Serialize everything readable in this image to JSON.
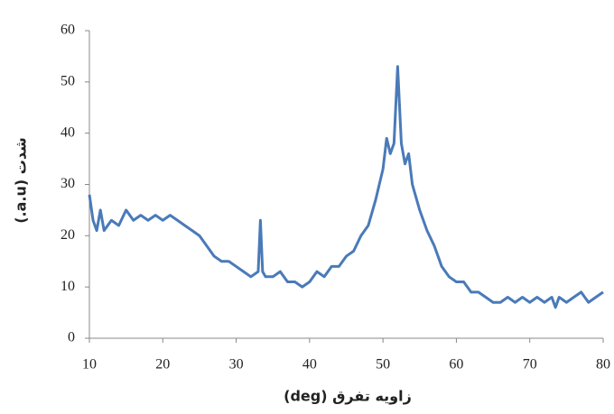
{
  "chart_data": {
    "type": "line",
    "x_label": "زاویه تفرق (deg)",
    "y_label": "شدت (a.u.)",
    "x": [
      10,
      10.5,
      11,
      11.5,
      12,
      13,
      14,
      15,
      16,
      17,
      18,
      19,
      20,
      21,
      22,
      23,
      24,
      25,
      26,
      27,
      28,
      29,
      30,
      31,
      32,
      33,
      33.3,
      33.6,
      34,
      35,
      36,
      37,
      38,
      39,
      40,
      41,
      42,
      43,
      44,
      45,
      46,
      47,
      48,
      49,
      50,
      50.5,
      51,
      51.5,
      52,
      52.5,
      53,
      53.5,
      54,
      55,
      56,
      57,
      58,
      59,
      60,
      61,
      62,
      63,
      64,
      65,
      66,
      67,
      68,
      69,
      70,
      71,
      72,
      73,
      73.5,
      74,
      75,
      76,
      77,
      78,
      79,
      80
    ],
    "series": [
      {
        "color": "#4a7ab8",
        "values": [
          28,
          23,
          21,
          25,
          21,
          23,
          22,
          25,
          23,
          24,
          23,
          24,
          23,
          24,
          23,
          22,
          21,
          20,
          18,
          16,
          15,
          15,
          14,
          13,
          12,
          13,
          23,
          13,
          12,
          12,
          13,
          11,
          11,
          10,
          11,
          13,
          12,
          14,
          14,
          16,
          17,
          20,
          22,
          27,
          33,
          39,
          36,
          38,
          53,
          38,
          34,
          36,
          30,
          25,
          21,
          18,
          14,
          12,
          11,
          11,
          9,
          9,
          8,
          7,
          7,
          8,
          7,
          8,
          7,
          8,
          7,
          8,
          6,
          8,
          7,
          8,
          9,
          7,
          8,
          9
        ]
      }
    ],
    "xlim": [
      10,
      80
    ],
    "xticks": [
      10,
      20,
      30,
      40,
      50,
      60,
      70,
      80
    ],
    "ylim": [
      0,
      60
    ],
    "yticks": [
      0,
      10,
      20,
      30,
      40,
      50,
      60
    ],
    "grid": false
  }
}
